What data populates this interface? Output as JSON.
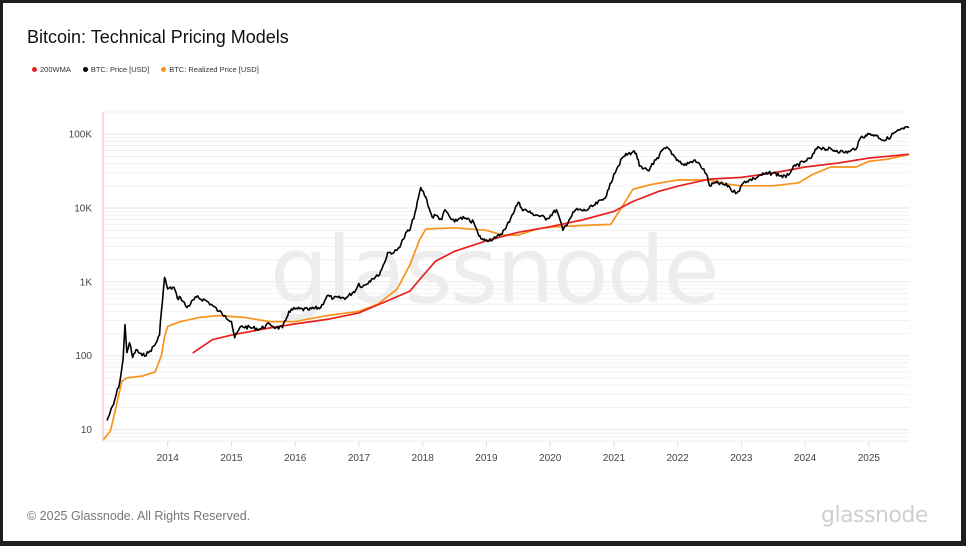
{
  "header": {
    "title": "Bitcoin: Technical Pricing Models"
  },
  "footer": {
    "copyright": "© 2025 Glassnode. All Rights Reserved.",
    "brand": "glassnode"
  },
  "watermark": "glassnode",
  "chart_data": {
    "type": "line",
    "title": "Bitcoin: Technical Pricing Models",
    "xlabel": "",
    "ylabel": "",
    "yscale": "log",
    "xlim": [
      2013.0,
      2025.63
    ],
    "ylim": [
      7,
      200000
    ],
    "grid": true,
    "legend_position": "top-left",
    "x_ticks": [
      2014,
      2015,
      2016,
      2017,
      2018,
      2019,
      2020,
      2021,
      2022,
      2023,
      2024,
      2025
    ],
    "x_tick_labels": [
      "2014",
      "2015",
      "2016",
      "2017",
      "2018",
      "2019",
      "2020",
      "2021",
      "2022",
      "2023",
      "2024",
      "2025"
    ],
    "y_ticks": [
      10,
      100,
      1000,
      10000,
      100000
    ],
    "y_tick_labels": [
      "10",
      "100",
      "1K",
      "10K",
      "100K"
    ],
    "series": [
      {
        "name": "200WMA",
        "color": "#e8201f",
        "points": [
          [
            2014.4,
            110
          ],
          [
            2014.7,
            165
          ],
          [
            2015.0,
            190
          ],
          [
            2015.5,
            230
          ],
          [
            2016.0,
            270
          ],
          [
            2016.5,
            310
          ],
          [
            2017.0,
            380
          ],
          [
            2017.5,
            580
          ],
          [
            2017.8,
            750
          ],
          [
            2018.0,
            1200
          ],
          [
            2018.2,
            1900
          ],
          [
            2018.5,
            2600
          ],
          [
            2019.0,
            3600
          ],
          [
            2019.5,
            4700
          ],
          [
            2020.0,
            5600
          ],
          [
            2020.5,
            6900
          ],
          [
            2021.0,
            9000
          ],
          [
            2021.3,
            12300
          ],
          [
            2021.7,
            16800
          ],
          [
            2022.0,
            19800
          ],
          [
            2022.5,
            24700
          ],
          [
            2023.0,
            26000
          ],
          [
            2023.5,
            29800
          ],
          [
            2024.0,
            36000
          ],
          [
            2024.5,
            40500
          ],
          [
            2025.0,
            47500
          ],
          [
            2025.62,
            53500
          ]
        ]
      },
      {
        "name": "BTC: Price [USD]",
        "color": "#000000",
        "points": [
          [
            2013.05,
            13.5
          ],
          [
            2013.15,
            22
          ],
          [
            2013.25,
            45
          ],
          [
            2013.3,
            90
          ],
          [
            2013.33,
            265
          ],
          [
            2013.36,
            110
          ],
          [
            2013.4,
            150
          ],
          [
            2013.45,
            95
          ],
          [
            2013.5,
            120
          ],
          [
            2013.6,
            100
          ],
          [
            2013.7,
            110
          ],
          [
            2013.8,
            140
          ],
          [
            2013.87,
            190
          ],
          [
            2013.9,
            400
          ],
          [
            2013.95,
            1150
          ],
          [
            2014.0,
            800
          ],
          [
            2014.1,
            840
          ],
          [
            2014.15,
            600
          ],
          [
            2014.2,
            620
          ],
          [
            2014.3,
            450
          ],
          [
            2014.45,
            620
          ],
          [
            2014.6,
            560
          ],
          [
            2014.7,
            480
          ],
          [
            2014.8,
            400
          ],
          [
            2014.9,
            350
          ],
          [
            2015.0,
            290
          ],
          [
            2015.05,
            175
          ],
          [
            2015.15,
            250
          ],
          [
            2015.3,
            240
          ],
          [
            2015.45,
            230
          ],
          [
            2015.6,
            270
          ],
          [
            2015.7,
            240
          ],
          [
            2015.8,
            240
          ],
          [
            2015.85,
            300
          ],
          [
            2015.9,
            400
          ],
          [
            2016.0,
            430
          ],
          [
            2016.2,
            420
          ],
          [
            2016.4,
            450
          ],
          [
            2016.5,
            650
          ],
          [
            2016.6,
            600
          ],
          [
            2016.8,
            610
          ],
          [
            2016.95,
            780
          ],
          [
            2017.0,
            950
          ],
          [
            2017.05,
            850
          ],
          [
            2017.2,
            1100
          ],
          [
            2017.3,
            1200
          ],
          [
            2017.4,
            1800
          ],
          [
            2017.45,
            2500
          ],
          [
            2017.55,
            2500
          ],
          [
            2017.6,
            2700
          ],
          [
            2017.7,
            3800
          ],
          [
            2017.75,
            4800
          ],
          [
            2017.8,
            5000
          ],
          [
            2017.9,
            10000
          ],
          [
            2017.97,
            19000
          ],
          [
            2018.05,
            14000
          ],
          [
            2018.1,
            10000
          ],
          [
            2018.15,
            7500
          ],
          [
            2018.2,
            8000
          ],
          [
            2018.3,
            7000
          ],
          [
            2018.35,
            9500
          ],
          [
            2018.45,
            7000
          ],
          [
            2018.5,
            6500
          ],
          [
            2018.6,
            7500
          ],
          [
            2018.8,
            6400
          ],
          [
            2018.88,
            4200
          ],
          [
            2018.95,
            3700
          ],
          [
            2019.0,
            3700
          ],
          [
            2019.15,
            3900
          ],
          [
            2019.3,
            5200
          ],
          [
            2019.4,
            8000
          ],
          [
            2019.5,
            12000
          ],
          [
            2019.55,
            10000
          ],
          [
            2019.7,
            8500
          ],
          [
            2019.8,
            8000
          ],
          [
            2019.95,
            7200
          ],
          [
            2020.1,
            9500
          ],
          [
            2020.2,
            5000
          ],
          [
            2020.3,
            7000
          ],
          [
            2020.4,
            9500
          ],
          [
            2020.55,
            9200
          ],
          [
            2020.7,
            11000
          ],
          [
            2020.85,
            13500
          ],
          [
            2020.92,
            18000
          ],
          [
            2021.0,
            29000
          ],
          [
            2021.05,
            35000
          ],
          [
            2021.15,
            50000
          ],
          [
            2021.3,
            58000
          ],
          [
            2021.35,
            55000
          ],
          [
            2021.4,
            37000
          ],
          [
            2021.45,
            34000
          ],
          [
            2021.55,
            32000
          ],
          [
            2021.6,
            40000
          ],
          [
            2021.7,
            47000
          ],
          [
            2021.75,
            60000
          ],
          [
            2021.85,
            65000
          ],
          [
            2021.95,
            50000
          ],
          [
            2022.0,
            45000
          ],
          [
            2022.1,
            38000
          ],
          [
            2022.25,
            44000
          ],
          [
            2022.35,
            39000
          ],
          [
            2022.45,
            29000
          ],
          [
            2022.5,
            20000
          ],
          [
            2022.6,
            22000
          ],
          [
            2022.8,
            20000
          ],
          [
            2022.87,
            16500
          ],
          [
            2022.95,
            16800
          ],
          [
            2023.05,
            23000
          ],
          [
            2023.2,
            25000
          ],
          [
            2023.3,
            28000
          ],
          [
            2023.5,
            30000
          ],
          [
            2023.7,
            26000
          ],
          [
            2023.8,
            34000
          ],
          [
            2023.85,
            37000
          ],
          [
            2024.0,
            43000
          ],
          [
            2024.1,
            48000
          ],
          [
            2024.2,
            68000
          ],
          [
            2024.3,
            64000
          ],
          [
            2024.5,
            60000
          ],
          [
            2024.6,
            57000
          ],
          [
            2024.7,
            58000
          ],
          [
            2024.82,
            68000
          ],
          [
            2024.87,
            90000
          ],
          [
            2024.95,
            97000
          ],
          [
            2025.0,
            100000
          ],
          [
            2025.1,
            98000
          ],
          [
            2025.25,
            82000
          ],
          [
            2025.35,
            95000
          ],
          [
            2025.4,
            105000
          ],
          [
            2025.55,
            118000
          ],
          [
            2025.62,
            124000
          ]
        ]
      },
      {
        "name": "BTC: Realized Price [USD]",
        "color": "#f7931a",
        "points": [
          [
            2013.0,
            7.5
          ],
          [
            2013.1,
            9.5
          ],
          [
            2013.2,
            22
          ],
          [
            2013.28,
            45
          ],
          [
            2013.35,
            50
          ],
          [
            2013.6,
            53
          ],
          [
            2013.8,
            60
          ],
          [
            2013.9,
            100
          ],
          [
            2013.95,
            180
          ],
          [
            2014.0,
            250
          ],
          [
            2014.2,
            290
          ],
          [
            2014.5,
            330
          ],
          [
            2014.8,
            350
          ],
          [
            2015.2,
            330
          ],
          [
            2015.6,
            290
          ],
          [
            2016.0,
            290
          ],
          [
            2016.5,
            350
          ],
          [
            2017.0,
            400
          ],
          [
            2017.3,
            500
          ],
          [
            2017.6,
            800
          ],
          [
            2017.8,
            1700
          ],
          [
            2017.95,
            3700
          ],
          [
            2018.05,
            5200
          ],
          [
            2018.5,
            5400
          ],
          [
            2019.0,
            5000
          ],
          [
            2019.25,
            4300
          ],
          [
            2019.5,
            4300
          ],
          [
            2019.8,
            5200
          ],
          [
            2020.0,
            5500
          ],
          [
            2020.5,
            5800
          ],
          [
            2020.95,
            6000
          ],
          [
            2021.1,
            9500
          ],
          [
            2021.3,
            18000
          ],
          [
            2021.6,
            21000
          ],
          [
            2022.0,
            24000
          ],
          [
            2022.5,
            24000
          ],
          [
            2022.8,
            21000
          ],
          [
            2023.0,
            20000
          ],
          [
            2023.5,
            20000
          ],
          [
            2023.9,
            22000
          ],
          [
            2024.1,
            28000
          ],
          [
            2024.4,
            36000
          ],
          [
            2024.8,
            36000
          ],
          [
            2025.0,
            43000
          ],
          [
            2025.3,
            46000
          ],
          [
            2025.62,
            53000
          ]
        ]
      }
    ]
  }
}
